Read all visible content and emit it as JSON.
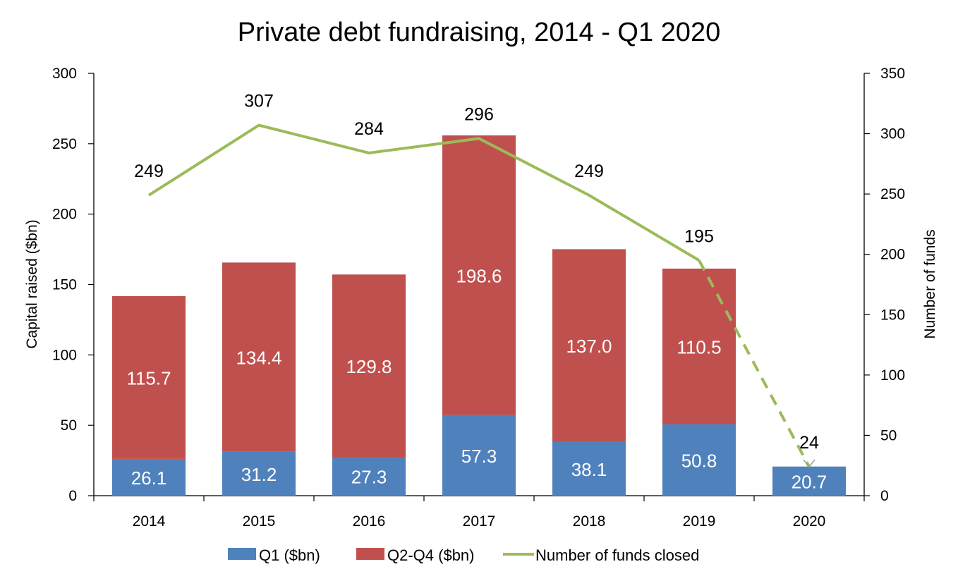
{
  "chart_data": {
    "type": "bar",
    "title": "Private debt fundraising, 2014 - Q1 2020",
    "xlabel": "",
    "ylabel": "Capital raised ($bn)",
    "y2label": "Number of funds",
    "categories": [
      "2014",
      "2015",
      "2016",
      "2017",
      "2018",
      "2019",
      "2020"
    ],
    "ylim": [
      0,
      300
    ],
    "y2lim": [
      0,
      350
    ],
    "yticks": [
      "0",
      "50",
      "100",
      "150",
      "200",
      "250",
      "300"
    ],
    "y2ticks": [
      "0",
      "50",
      "100",
      "150",
      "200",
      "250",
      "300",
      "350"
    ],
    "stacked": true,
    "series": [
      {
        "name": "Q1 ($bn)",
        "kind": "bar",
        "axis": "left",
        "color": "#4F81BD",
        "values": [
          26.1,
          31.2,
          27.3,
          57.3,
          38.1,
          50.8,
          20.7
        ],
        "labels": [
          "26.1",
          "31.2",
          "27.3",
          "57.3",
          "38.1",
          "50.8",
          "20.7"
        ]
      },
      {
        "name": "Q2-Q4 ($bn)",
        "kind": "bar",
        "axis": "left",
        "color": "#C0504D",
        "values": [
          115.7,
          134.4,
          129.8,
          198.6,
          137.0,
          110.5,
          null
        ],
        "labels": [
          "115.7",
          "134.4",
          "129.8",
          "198.6",
          "137.0",
          "110.5",
          ""
        ]
      },
      {
        "name": "Number of funds closed",
        "kind": "line",
        "axis": "right",
        "color": "#9BBB59",
        "values": [
          249,
          307,
          284,
          296,
          249,
          195,
          24
        ],
        "labels": [
          "249",
          "307",
          "284",
          "296",
          "249",
          "195",
          "24"
        ],
        "dashed_from_index": 5
      }
    ],
    "legend_position": "bottom",
    "grid": false
  }
}
